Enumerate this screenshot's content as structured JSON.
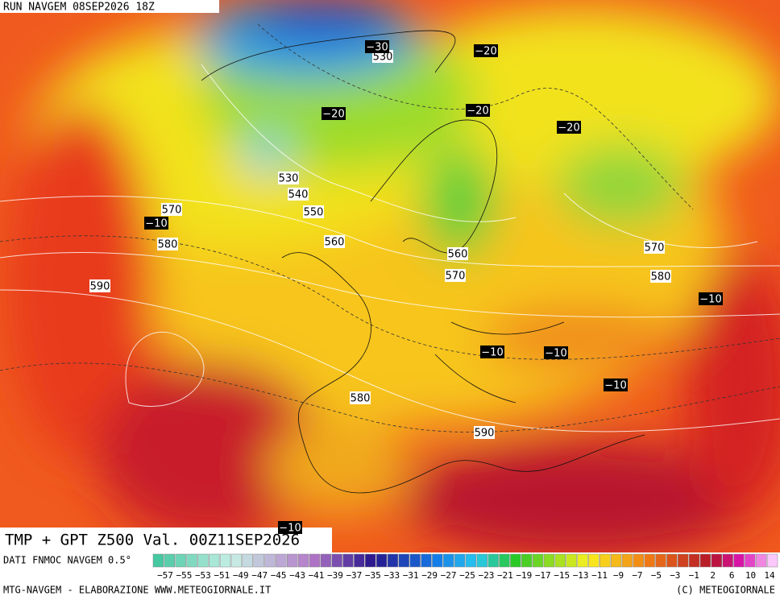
{
  "header": {
    "run": "RUN NAVGEM 08SEP2026 18Z"
  },
  "map": {
    "title": "TMP + GPT Z500 Val. 00Z11SEP2026",
    "height_labels": [
      "530",
      "530",
      "540",
      "550",
      "570",
      "560",
      "580",
      "590",
      "560",
      "570",
      "570",
      "580",
      "580",
      "590"
    ],
    "temp_labels": [
      "−30",
      "−20",
      "−20",
      "−20",
      "−20",
      "−10",
      "−10",
      "−10",
      "−10",
      "−10",
      "−10"
    ]
  },
  "legend": {
    "source": "DATI FNMOC NAVGEM 0.5°",
    "labels": [
      "−57",
      "−55",
      "−53",
      "−51",
      "−49",
      "−47",
      "−45",
      "−43",
      "−41",
      "−39",
      "−37",
      "−35",
      "−33",
      "−31",
      "−29",
      "−27",
      "−25",
      "−23",
      "−21",
      "−19",
      "−17",
      "−15",
      "−13",
      "−11",
      "−9",
      "−7",
      "−5",
      "−3",
      "−1",
      "2",
      "6",
      "10",
      "14"
    ]
  },
  "footer": {
    "left": "MTG-NAVGEM - ELABORAZIONE WWW.METEOGIORNALE.IT",
    "right": "(C) METEOGIORNALE"
  }
}
